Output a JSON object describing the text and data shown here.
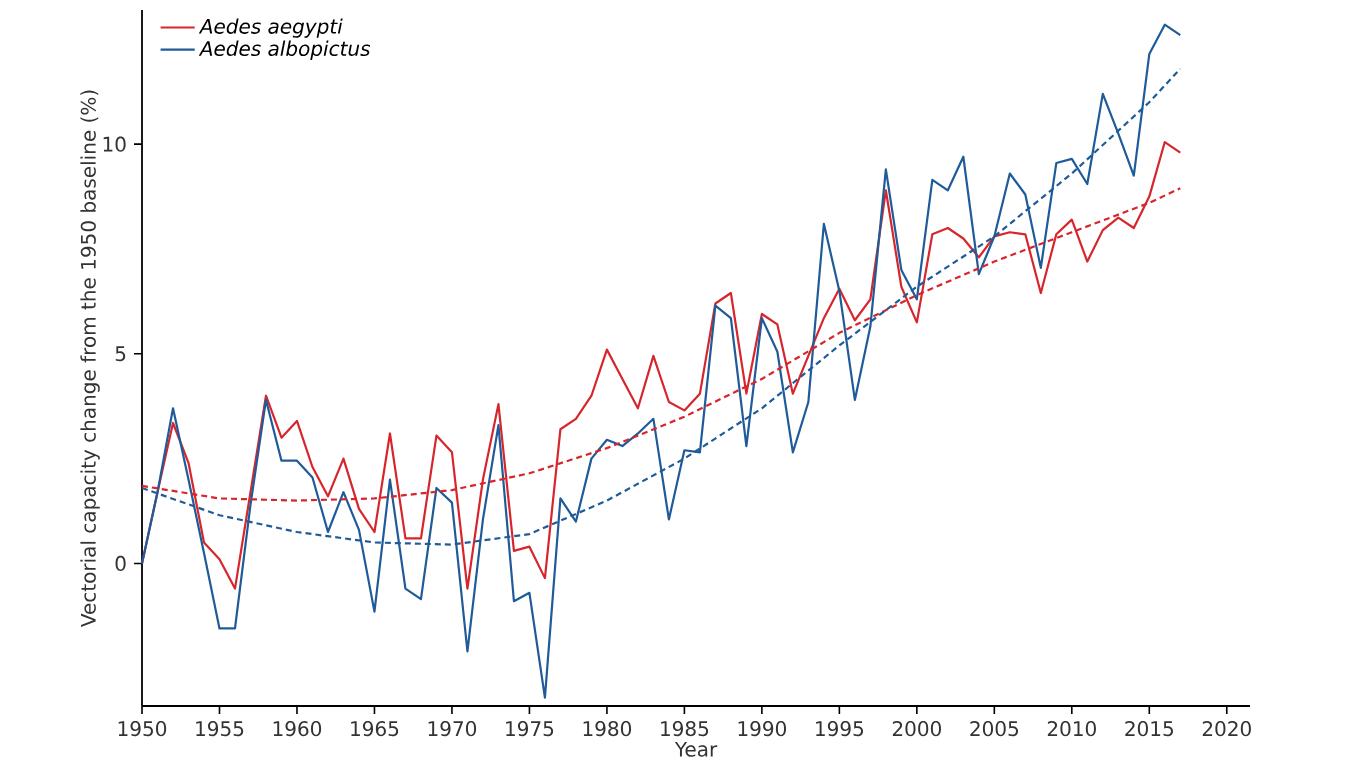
{
  "chart_data": {
    "type": "line",
    "xlabel": "Year",
    "ylabel": "Vectorial capacity change from the 1950 baseline (%)",
    "x": [
      1950,
      1951,
      1952,
      1953,
      1954,
      1955,
      1956,
      1957,
      1958,
      1959,
      1960,
      1961,
      1962,
      1963,
      1964,
      1965,
      1966,
      1967,
      1968,
      1969,
      1970,
      1971,
      1972,
      1973,
      1974,
      1975,
      1976,
      1977,
      1978,
      1979,
      1980,
      1981,
      1982,
      1983,
      1984,
      1985,
      1986,
      1987,
      1988,
      1989,
      1990,
      1991,
      1992,
      1993,
      1994,
      1995,
      1996,
      1997,
      1998,
      1999,
      2000,
      2001,
      2002,
      2003,
      2004,
      2005,
      2006,
      2007,
      2008,
      2009,
      2010,
      2011,
      2012,
      2013,
      2014,
      2015,
      2016,
      2017
    ],
    "series": [
      {
        "name": "Aedes aegypti",
        "color": "#d7262b",
        "values": [
          0,
          1.7,
          3.35,
          2.4,
          0.5,
          0.1,
          -0.6,
          1.7,
          4.0,
          3.0,
          3.4,
          2.3,
          1.6,
          2.5,
          1.3,
          0.75,
          3.1,
          0.6,
          0.6,
          3.05,
          2.65,
          -0.6,
          2.0,
          3.8,
          0.3,
          0.4,
          -0.35,
          3.2,
          3.45,
          4.0,
          5.1,
          4.4,
          3.7,
          4.95,
          3.85,
          3.65,
          4.05,
          6.2,
          6.45,
          4.05,
          5.95,
          5.7,
          4.05,
          4.95,
          5.85,
          6.55,
          5.8,
          6.3,
          8.9,
          6.6,
          5.75,
          7.85,
          8.0,
          7.75,
          7.3,
          7.8,
          7.9,
          7.85,
          6.45,
          7.85,
          8.2,
          7.2,
          7.95,
          8.25,
          8.0,
          8.75,
          10.05,
          9.8
        ]
      },
      {
        "name": "Aedes albopictus",
        "color": "#1f5b99",
        "values": [
          0,
          1.7,
          3.7,
          2.0,
          0.25,
          -1.55,
          -1.55,
          1.4,
          3.9,
          2.45,
          2.45,
          2.05,
          0.75,
          1.7,
          0.8,
          -1.15,
          2.0,
          -0.6,
          -0.85,
          1.8,
          1.45,
          -2.1,
          1.05,
          3.3,
          -0.9,
          -0.7,
          -3.2,
          1.55,
          1.0,
          2.5,
          2.95,
          2.8,
          3.1,
          3.45,
          1.05,
          2.7,
          2.65,
          6.15,
          5.85,
          2.8,
          5.85,
          5.05,
          2.65,
          3.85,
          8.1,
          6.5,
          3.9,
          5.65,
          9.4,
          7.0,
          6.3,
          9.15,
          8.9,
          9.7,
          6.9,
          7.8,
          9.3,
          8.8,
          7.05,
          9.55,
          9.65,
          9.05,
          11.2,
          10.25,
          9.25,
          12.15,
          12.85,
          12.6
        ]
      },
      {
        "color": "#d7262b",
        "line_style": "dashed",
        "x": [
          1950,
          1955,
          1960,
          1965,
          1970,
          1975,
          1980,
          1985,
          1990,
          1995,
          2000,
          2005,
          2010,
          2015,
          2017
        ],
        "values": [
          1.85,
          1.55,
          1.5,
          1.55,
          1.75,
          2.15,
          2.75,
          3.5,
          4.4,
          5.5,
          6.4,
          7.2,
          7.9,
          8.6,
          8.95
        ]
      },
      {
        "color": "#1f5b99",
        "line_style": "dashed",
        "x": [
          1950,
          1955,
          1960,
          1965,
          1970,
          1975,
          1980,
          1985,
          1990,
          1995,
          2000,
          2005,
          2010,
          2015,
          2017
        ],
        "values": [
          1.8,
          1.15,
          0.75,
          0.5,
          0.45,
          0.7,
          1.5,
          2.5,
          3.7,
          5.2,
          6.6,
          7.8,
          9.3,
          11.0,
          11.8
        ]
      }
    ],
    "xlim": [
      1950,
      2021.5
    ],
    "ylim": [
      -3.4,
      13.2
    ],
    "xticks": [
      1950,
      1955,
      1960,
      1965,
      1970,
      1975,
      1980,
      1985,
      1990,
      1995,
      2000,
      2005,
      2010,
      2015,
      2020
    ],
    "yticks": [
      0,
      5,
      10
    ],
    "legend": "top left",
    "marker": "none",
    "line_style": "solid",
    "grid": false
  }
}
